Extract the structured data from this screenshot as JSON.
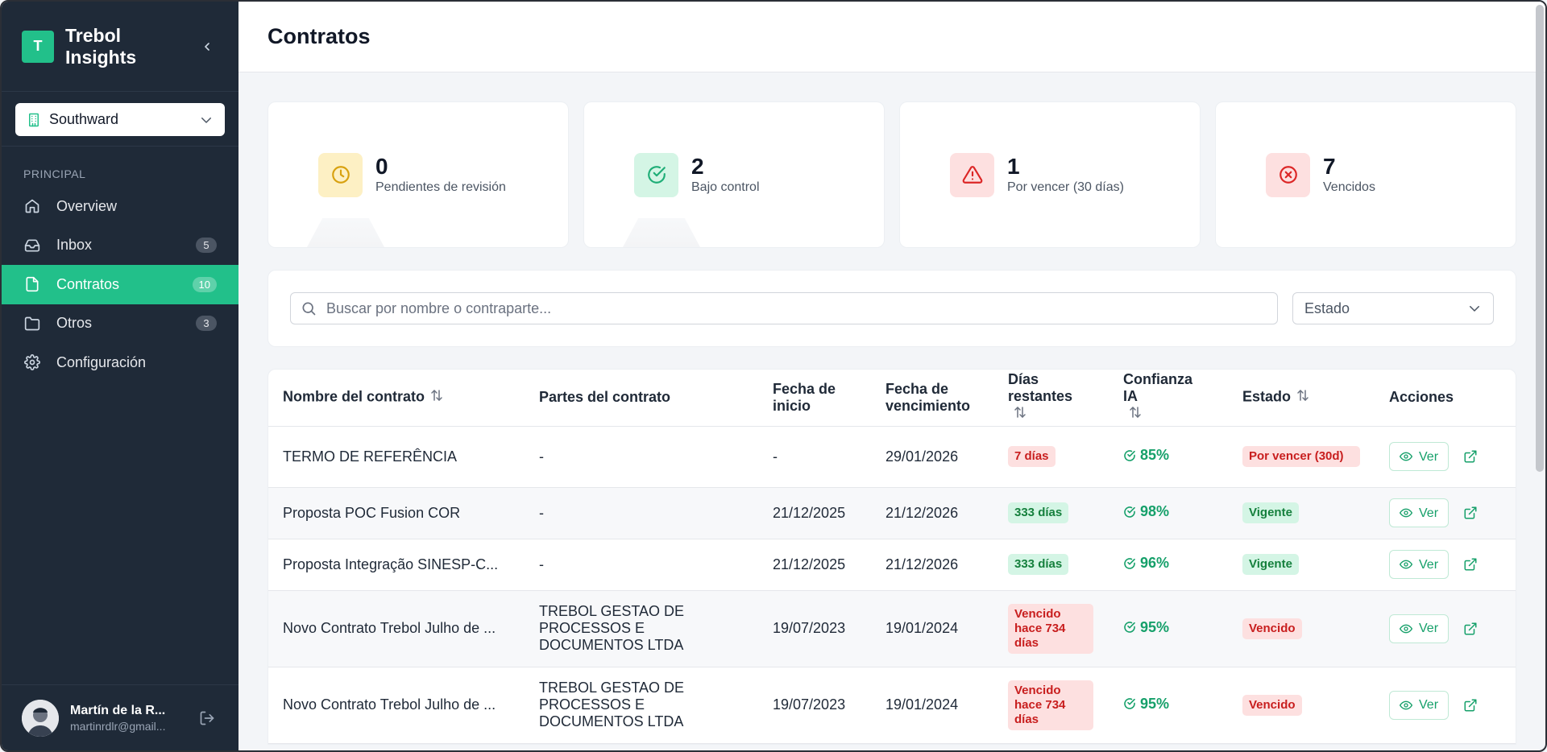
{
  "app": {
    "brand_initial": "T",
    "brand_name": "Trebol Insights",
    "accent": "#22c08a"
  },
  "org": {
    "name": "Southward"
  },
  "sidebar": {
    "section_label": "PRINCIPAL",
    "items": [
      {
        "label": "Overview",
        "icon": "home-icon",
        "count": ""
      },
      {
        "label": "Inbox",
        "icon": "inbox-icon",
        "count": "5"
      },
      {
        "label": "Contratos",
        "icon": "file-icon",
        "count": "10"
      },
      {
        "label": "Otros",
        "icon": "folder-icon",
        "count": "3"
      },
      {
        "label": "Configuración",
        "icon": "gear-icon",
        "count": ""
      }
    ]
  },
  "user": {
    "name": "Martín de la R...",
    "email": "martinrdlr@gmail..."
  },
  "header": {
    "title": "Contratos"
  },
  "stats": [
    {
      "value": "0",
      "label": "Pendientes de revisión",
      "icon": "clock-icon"
    },
    {
      "value": "2",
      "label": "Bajo control",
      "icon": "check-circle-icon"
    },
    {
      "value": "1",
      "label": "Por vencer (30 días)",
      "icon": "warning-icon"
    },
    {
      "value": "7",
      "label": "Vencidos",
      "icon": "x-circle-icon"
    }
  ],
  "filters": {
    "search_placeholder": "Buscar por nombre o contraparte...",
    "estado_label": "Estado"
  },
  "table": {
    "headers": {
      "nombre": "Nombre del contrato",
      "partes": "Partes del contrato",
      "inicio": "Fecha de inicio",
      "vencimiento": "Fecha de vencimiento",
      "dias": "Días restantes",
      "confianza": "Confianza IA",
      "estado": "Estado",
      "acciones": "Acciones"
    },
    "rows": [
      {
        "nombre": "TERMO DE REFERÊNCIA",
        "partes": "-",
        "inicio": "-",
        "vencimiento": "29/01/2026",
        "dias": "7 días",
        "confianza": "85%",
        "estado": "Por vencer (30d)",
        "ver": "Ver"
      },
      {
        "nombre": "Proposta POC Fusion COR",
        "partes": "-",
        "inicio": "21/12/2025",
        "vencimiento": "21/12/2026",
        "dias": "333 días",
        "confianza": "98%",
        "estado": "Vigente",
        "ver": "Ver"
      },
      {
        "nombre": "Proposta Integração SINESP-C...",
        "partes": "-",
        "inicio": "21/12/2025",
        "vencimiento": "21/12/2026",
        "dias": "333 días",
        "confianza": "96%",
        "estado": "Vigente",
        "ver": "Ver"
      },
      {
        "nombre": "Novo Contrato Trebol Julho de ...",
        "partes": "TREBOL GESTAO DE PROCESSOS E DOCUMENTOS LTDA",
        "inicio": "19/07/2023",
        "vencimiento": "19/01/2024",
        "dias": "Vencido hace 734 días",
        "confianza": "95%",
        "estado": "Vencido",
        "ver": "Ver"
      },
      {
        "nombre": "Novo Contrato Trebol Julho de ...",
        "partes": "TREBOL GESTAO DE PROCESSOS E DOCUMENTOS LTDA",
        "inicio": "19/07/2023",
        "vencimiento": "19/01/2024",
        "dias": "Vencido hace 734 días",
        "confianza": "95%",
        "estado": "Vencido",
        "ver": "Ver"
      }
    ]
  }
}
